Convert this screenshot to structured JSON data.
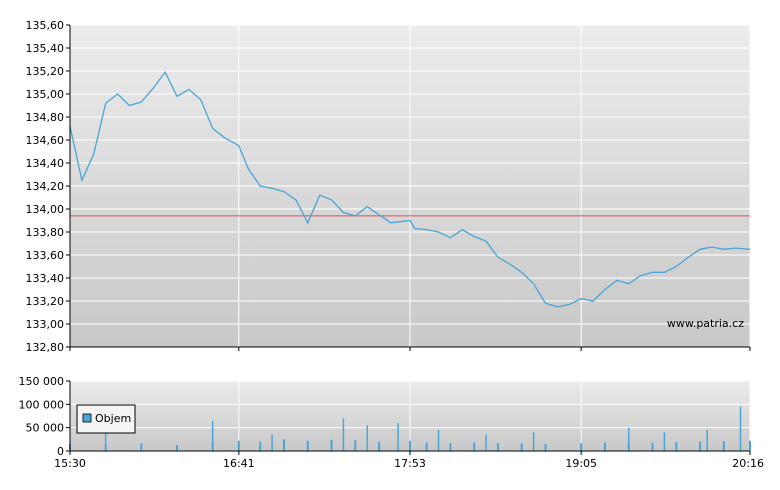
{
  "colors": {
    "price_line": "#4aa6d6",
    "reference_line": "#e05050",
    "volume_bar": "#4aa6d6",
    "grid": "#ffffff",
    "plot_top": "#ececec",
    "plot_bottom": "#c8c8c8"
  },
  "watermark": "www.patria.cz",
  "legend": {
    "volume_label": "Objem"
  },
  "chart_data": [
    {
      "type": "line",
      "name": "price",
      "ylim": [
        132.8,
        135.6
      ],
      "y_ticks": [
        "132,80",
        "133,00",
        "133,20",
        "133,40",
        "133,60",
        "133,80",
        "134,00",
        "134,20",
        "134,40",
        "134,60",
        "134,80",
        "135,00",
        "135,20",
        "135,40",
        "135,60"
      ],
      "reference_value": 133.94,
      "x": [
        "15:30",
        "15:35",
        "15:40",
        "15:45",
        "15:50",
        "15:55",
        "16:00",
        "16:05",
        "16:10",
        "16:15",
        "16:20",
        "16:25",
        "16:30",
        "16:35",
        "16:41",
        "16:45",
        "16:50",
        "16:55",
        "17:00",
        "17:05",
        "17:10",
        "17:15",
        "17:20",
        "17:25",
        "17:30",
        "17:35",
        "17:40",
        "17:45",
        "17:53",
        "17:55",
        "18:00",
        "18:05",
        "18:10",
        "18:15",
        "18:20",
        "18:25",
        "18:30",
        "18:35",
        "18:40",
        "18:45",
        "18:50",
        "18:55",
        "19:00",
        "19:05",
        "19:10",
        "19:15",
        "19:20",
        "19:25",
        "19:30",
        "19:35",
        "19:40",
        "19:45",
        "19:50",
        "19:55",
        "20:00",
        "20:05",
        "20:10",
        "20:16"
      ],
      "y": [
        134.72,
        134.25,
        134.48,
        134.92,
        135.0,
        134.9,
        134.93,
        135.05,
        135.19,
        134.98,
        135.04,
        134.95,
        134.7,
        134.62,
        134.55,
        134.35,
        134.2,
        134.18,
        134.15,
        134.08,
        133.88,
        134.12,
        134.08,
        133.97,
        133.94,
        134.02,
        133.95,
        133.88,
        133.9,
        133.83,
        133.82,
        133.8,
        133.75,
        133.82,
        133.76,
        133.72,
        133.58,
        133.52,
        133.45,
        133.35,
        133.18,
        133.15,
        133.17,
        133.22,
        133.2,
        133.3,
        133.38,
        133.35,
        133.42,
        133.45,
        133.45,
        133.5,
        133.58,
        133.65,
        133.67,
        133.65,
        133.66,
        133.65
      ]
    },
    {
      "type": "bar",
      "name": "volume",
      "ylim": [
        0,
        150000
      ],
      "y_ticks": [
        "0",
        "50 000",
        "100 000",
        "150 000"
      ],
      "x_ticks": [
        "15:30",
        "16:41",
        "17:53",
        "19:05",
        "20:16"
      ],
      "x": [
        "15:30",
        "15:45",
        "16:00",
        "16:15",
        "16:30",
        "16:41",
        "16:50",
        "17:00",
        "17:10",
        "17:20",
        "17:30",
        "17:40",
        "17:53",
        "18:00",
        "18:10",
        "18:20",
        "18:30",
        "18:40",
        "18:50",
        "19:05",
        "19:15",
        "19:25",
        "19:35",
        "19:45",
        "19:55",
        "20:05",
        "20:16"
      ],
      "values": [
        15000,
        14000,
        16000,
        13000,
        18000,
        22000,
        20000,
        25000,
        22000,
        24000,
        23000,
        20000,
        22000,
        18000,
        17000,
        18000,
        17000,
        16000,
        15000,
        17000,
        18000,
        19000,
        18000,
        19000,
        20000,
        21000,
        22000
      ],
      "spikes": [
        {
          "x": "15:45",
          "value": 40000
        },
        {
          "x": "16:30",
          "value": 65000
        },
        {
          "x": "16:55",
          "value": 35000
        },
        {
          "x": "17:25",
          "value": 70000
        },
        {
          "x": "17:35",
          "value": 55000
        },
        {
          "x": "17:48",
          "value": 60000
        },
        {
          "x": "18:05",
          "value": 45000
        },
        {
          "x": "18:25",
          "value": 35000
        },
        {
          "x": "18:45",
          "value": 40000
        },
        {
          "x": "19:25",
          "value": 50000
        },
        {
          "x": "19:40",
          "value": 40000
        },
        {
          "x": "19:58",
          "value": 45000
        },
        {
          "x": "20:12",
          "value": 95000
        }
      ]
    }
  ]
}
